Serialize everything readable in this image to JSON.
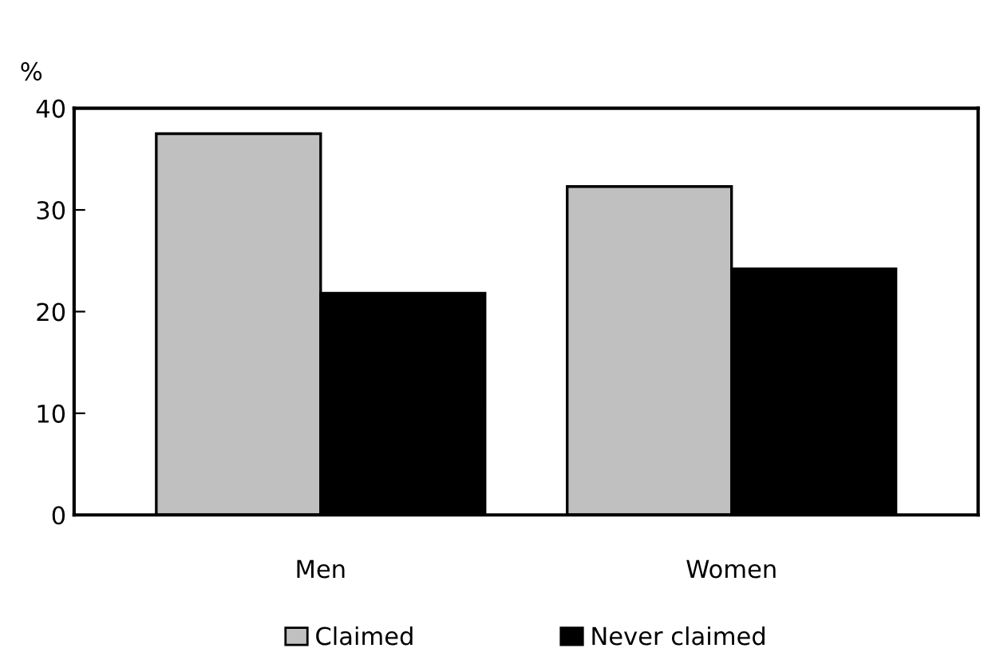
{
  "chart_data": {
    "type": "bar",
    "ylabel": "%",
    "categories": [
      "Men",
      "Women"
    ],
    "series": [
      {
        "name": "Claimed",
        "color": "#c0c0c0",
        "values": [
          37.5,
          32.3
        ]
      },
      {
        "name": "Never claimed",
        "color": "#000000",
        "values": [
          21.8,
          24.2
        ]
      }
    ],
    "ylim": [
      0,
      40
    ],
    "yticks": [
      0,
      10,
      20,
      30,
      40
    ],
    "grid": false,
    "legend": "bottom"
  }
}
